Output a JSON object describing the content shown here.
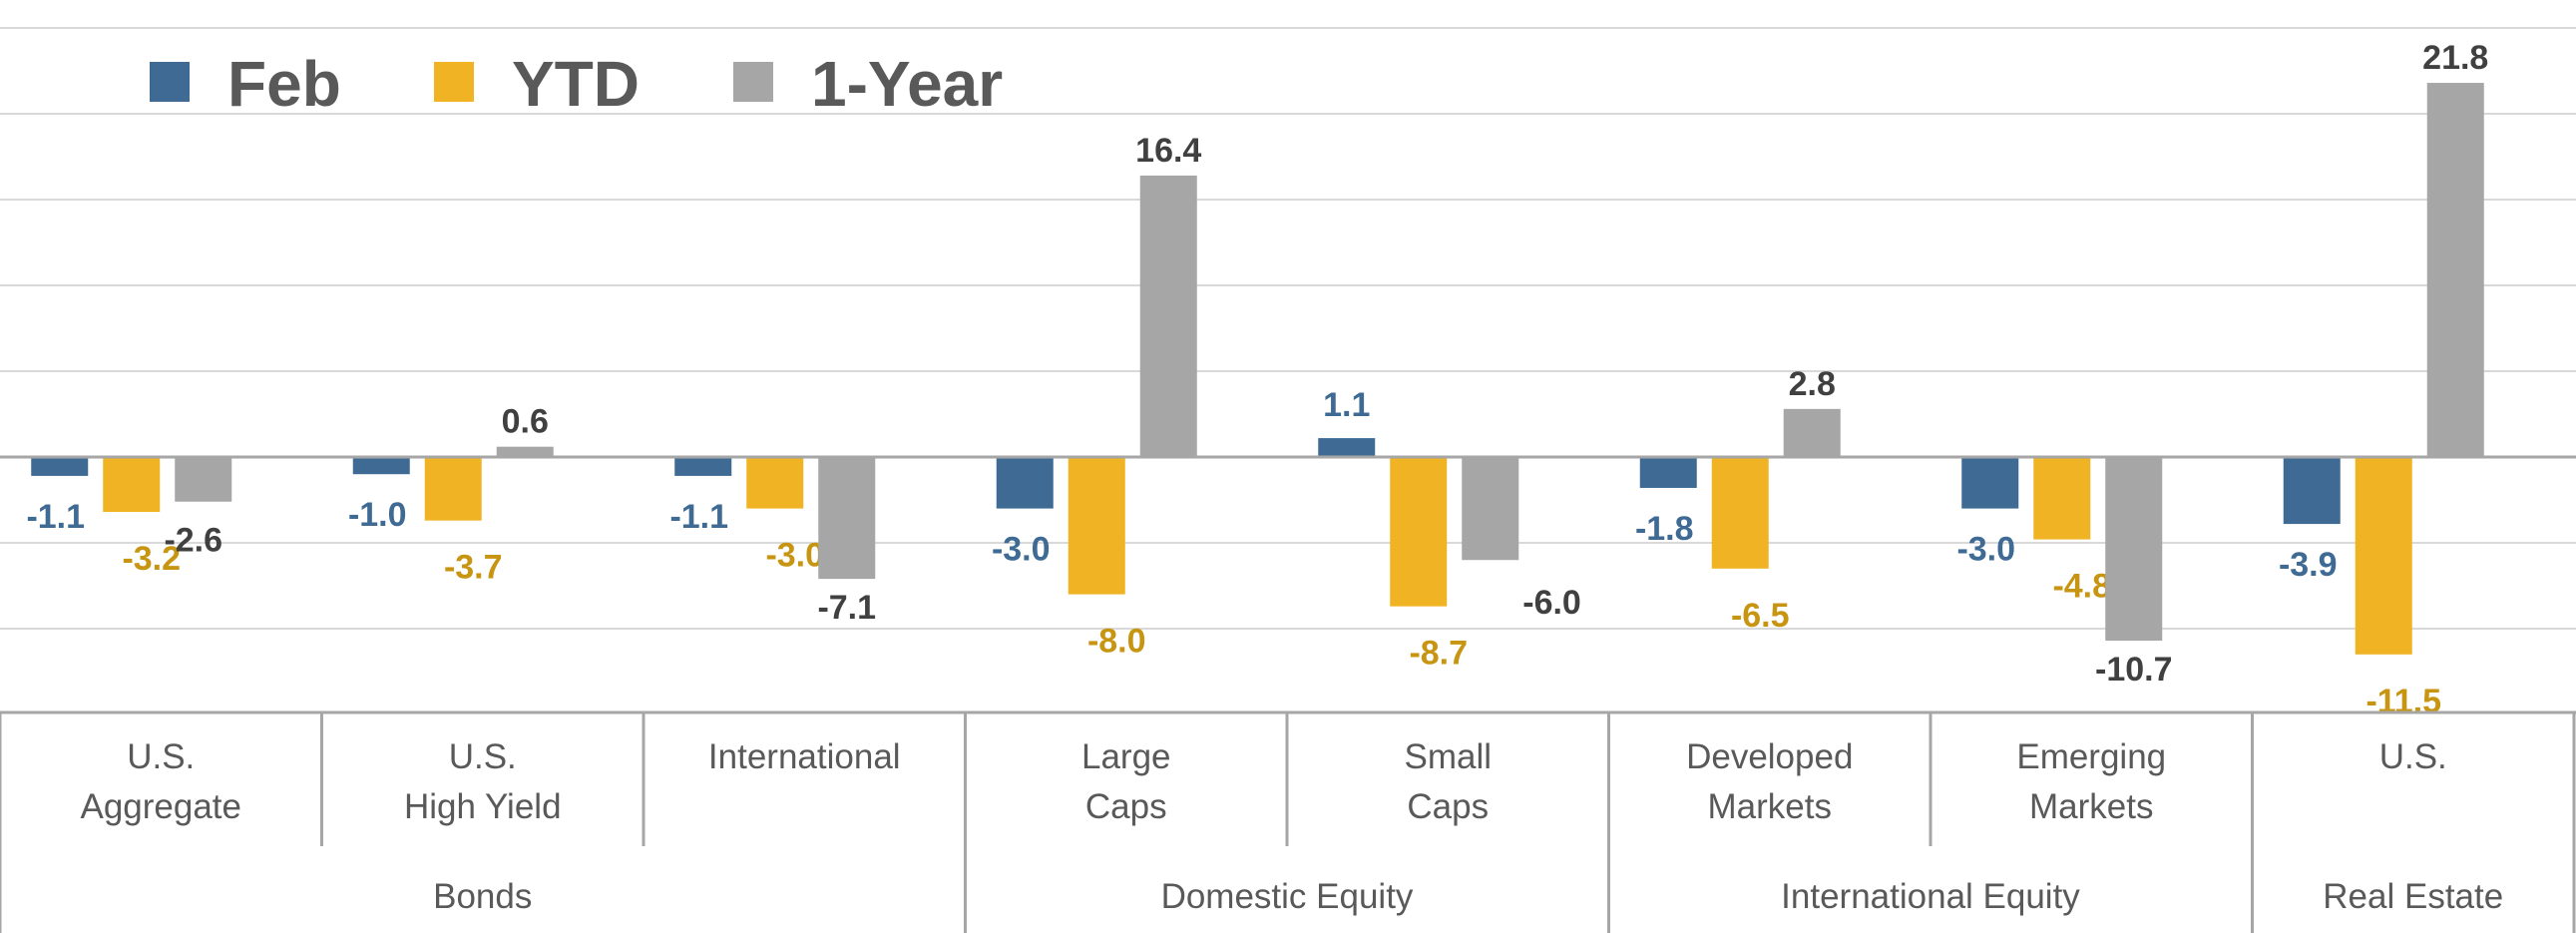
{
  "chart_data": {
    "type": "bar",
    "title": "",
    "xlabel": "",
    "ylabel": "",
    "ylim": [
      -15,
      25
    ],
    "grid": true,
    "legend_position": "top-left",
    "categories": [
      [
        "U.S.",
        "Aggregate"
      ],
      [
        "U.S.",
        "High Yield"
      ],
      [
        "International"
      ],
      [
        "Large",
        "Caps"
      ],
      [
        "Small",
        "Caps"
      ],
      [
        "Developed",
        "Markets"
      ],
      [
        "Emerging",
        "Markets"
      ],
      [
        "U.S."
      ]
    ],
    "groups": [
      {
        "label": "Bonds",
        "span": 3
      },
      {
        "label": "Domestic Equity",
        "span": 2
      },
      {
        "label": "International Equity",
        "span": 2
      },
      {
        "label": "Real Estate",
        "span": 1
      }
    ],
    "series": [
      {
        "name": "Feb",
        "color": "#3e6a94",
        "label_color": "#3e6a94",
        "values": [
          -1.1,
          -1.0,
          -1.1,
          -3.0,
          1.1,
          -1.8,
          -3.0,
          -3.9
        ],
        "labels": [
          "-1.1",
          "-1.0",
          "-1.1",
          "-3.0",
          "1.1",
          "-1.8",
          "-3.0",
          "-3.9"
        ]
      },
      {
        "name": "YTD",
        "color": "#f0b323",
        "label_color": "#c79511",
        "values": [
          -3.2,
          -3.7,
          -3.0,
          -8.0,
          -8.7,
          -6.5,
          -4.8,
          -11.5
        ],
        "labels": [
          "-3.2",
          "-3.7",
          "-3.0",
          "-8.0",
          "-8.7",
          "-6.5",
          "-4.8",
          "-11.5"
        ]
      },
      {
        "name": "1-Year",
        "color": "#a6a6a6",
        "label_color": "#404040",
        "values": [
          -2.6,
          0.6,
          -7.1,
          16.4,
          -6.0,
          2.8,
          -10.7,
          21.8
        ],
        "labels": [
          "-2.6",
          "0.6",
          "-7.1",
          "16.4",
          "-6.0",
          "2.8",
          "-10.7",
          "21.8"
        ]
      }
    ]
  }
}
